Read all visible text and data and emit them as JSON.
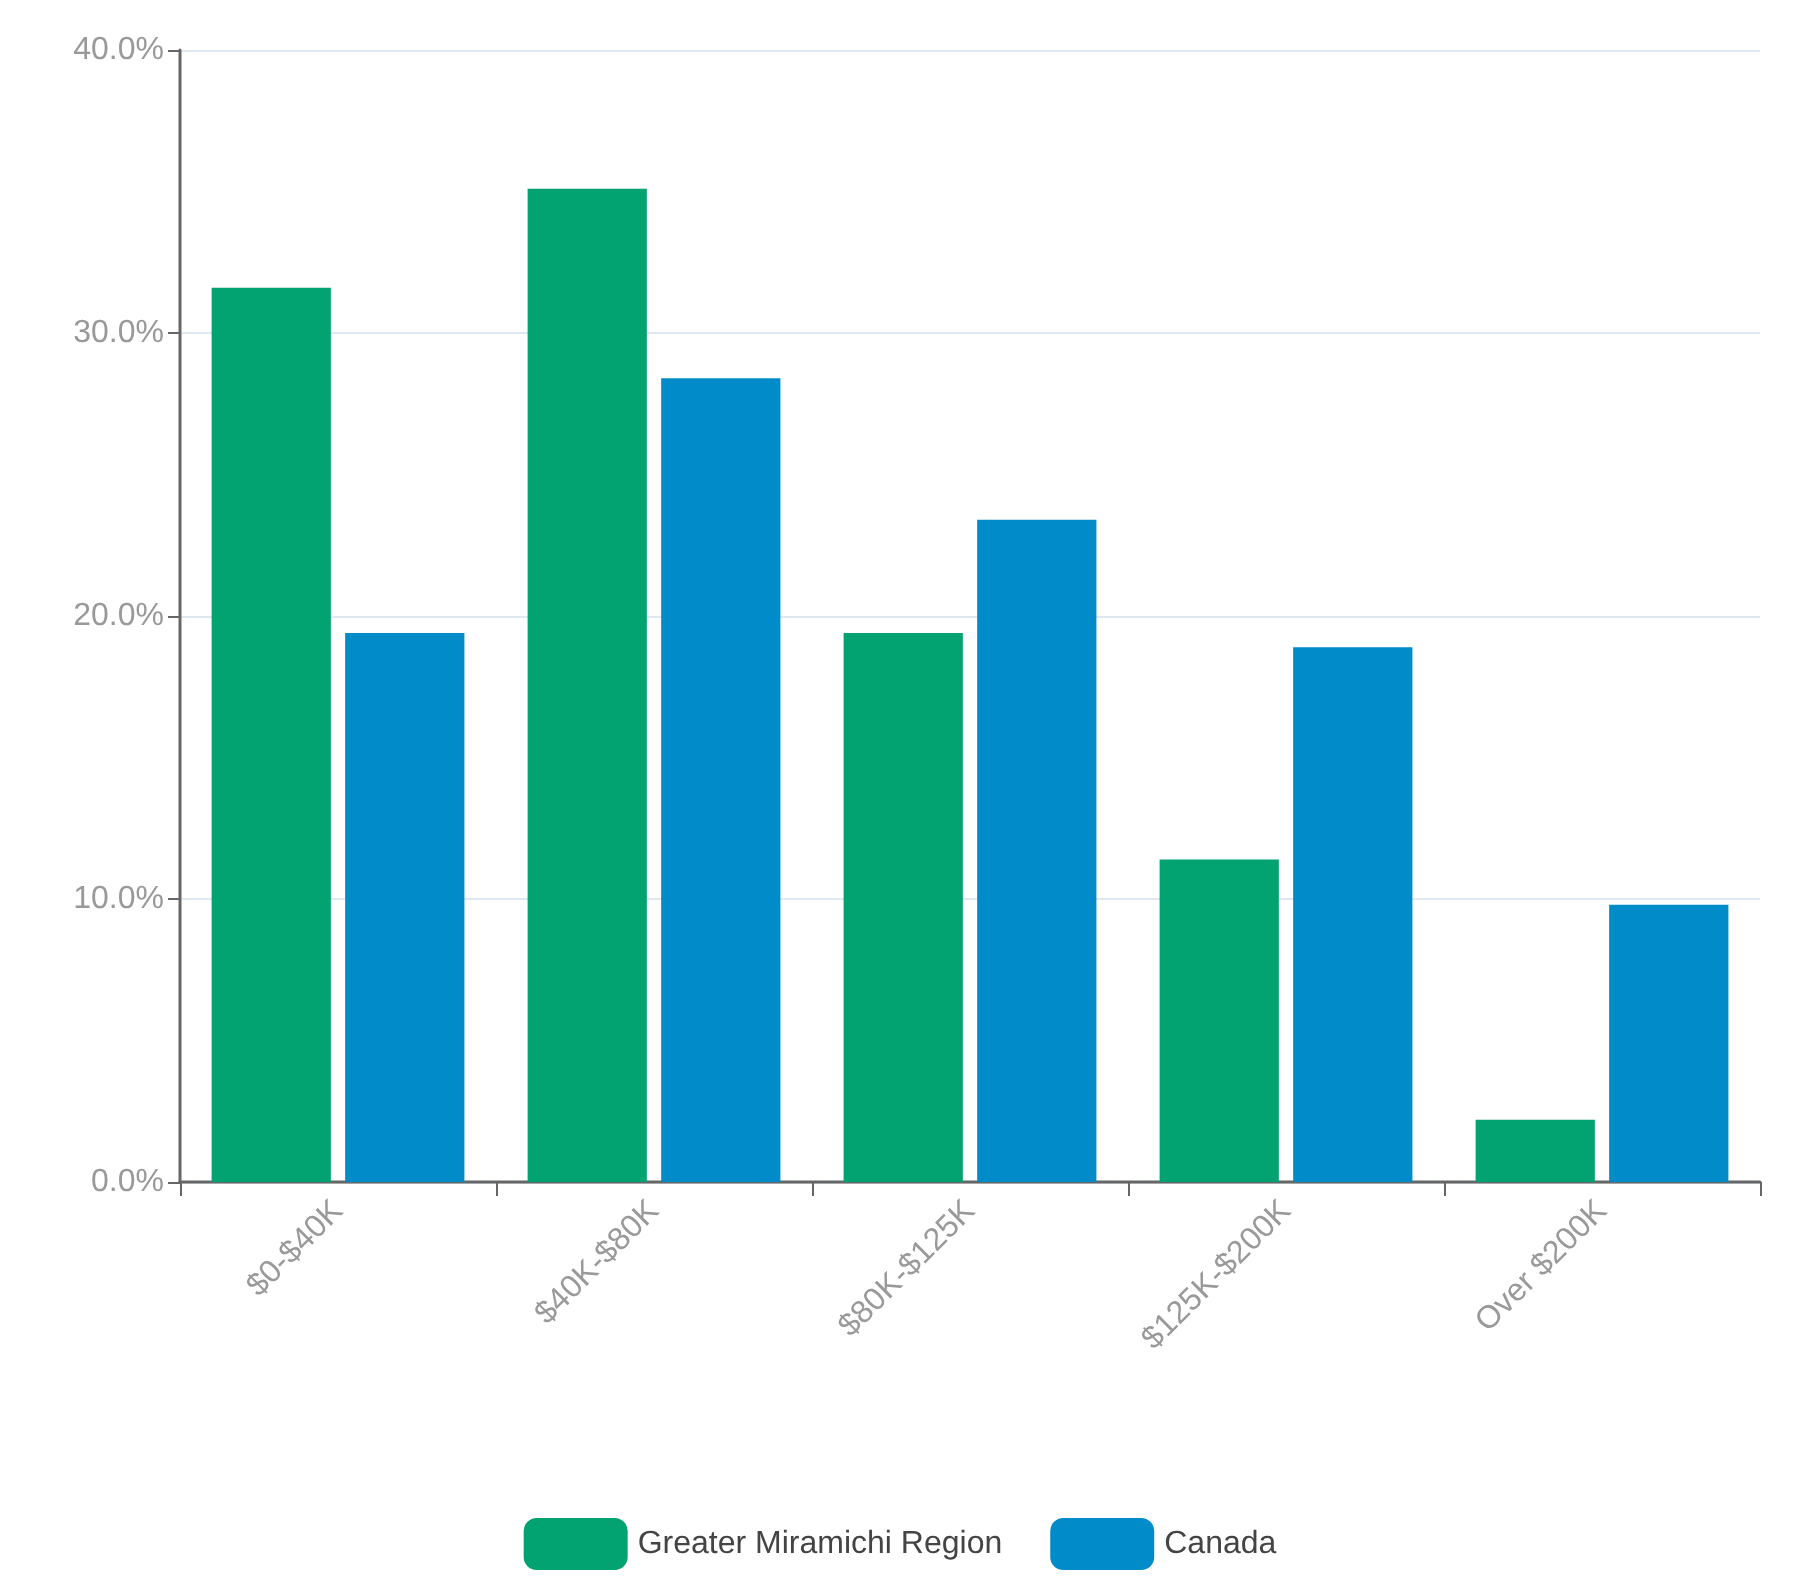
{
  "chart_data": {
    "type": "bar",
    "categories": [
      "$0-$40K",
      "$40K-$80K",
      "$80K-$125K",
      "$125K-$200K",
      "Over $200K"
    ],
    "series": [
      {
        "name": "Greater Miramichi Region",
        "color": "#02a370",
        "values": [
          31.6,
          35.1,
          19.4,
          11.4,
          2.2
        ]
      },
      {
        "name": "Canada",
        "color": "#018bc9",
        "values": [
          19.4,
          28.4,
          23.4,
          18.9,
          9.8
        ]
      }
    ],
    "ylim": [
      0,
      40
    ],
    "yticks": [
      {
        "value": 0,
        "label": "0.0%"
      },
      {
        "value": 10,
        "label": "10.0%"
      },
      {
        "value": 20,
        "label": "20.0%"
      },
      {
        "value": 30,
        "label": "30.0%"
      },
      {
        "value": 40,
        "label": "40.0%"
      }
    ],
    "grid": "y",
    "legend": "bottom"
  }
}
